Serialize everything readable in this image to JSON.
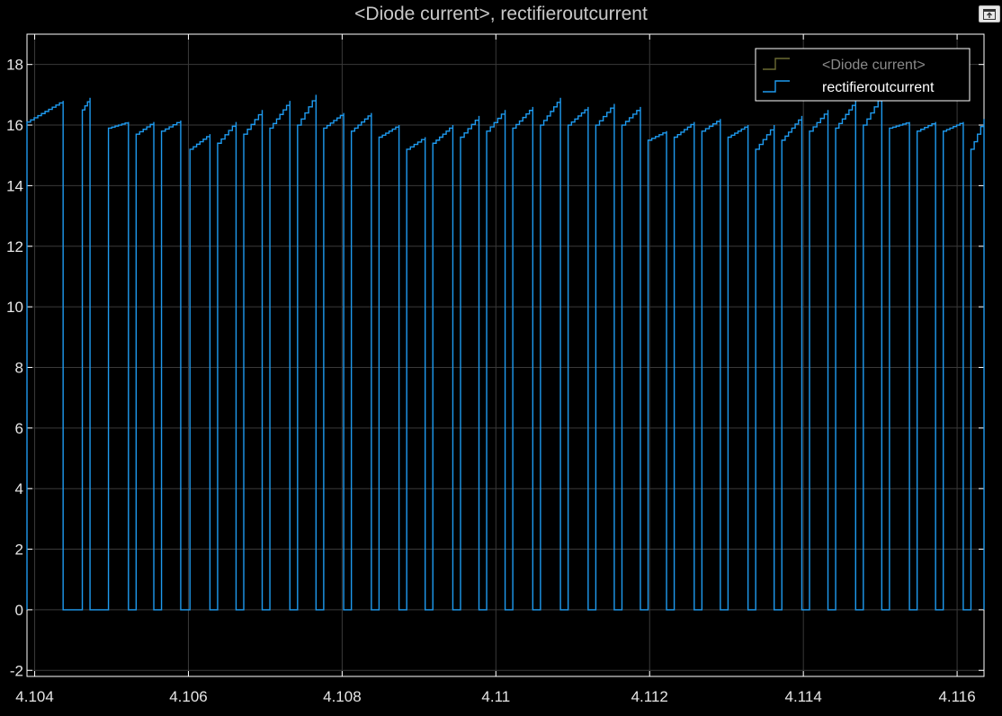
{
  "title": "<Diode current>, rectifieroutcurrent",
  "colors": {
    "background": "#000000",
    "axes_border": "#ffffff",
    "grid": "#3a3a3a",
    "tick_label": "#e6e6e6",
    "title": "#c8c8c8",
    "legend_bg": "#000000",
    "legend_border": "#ffffff"
  },
  "toolbar": {
    "undock_icon": "undock-icon"
  },
  "chart_data": {
    "type": "line",
    "step": true,
    "title": "<Diode current>, rectifieroutcurrent",
    "xlabel": "",
    "ylabel": "",
    "xlim": [
      4.1039,
      4.11635
    ],
    "ylim": [
      -2.2,
      19.0
    ],
    "xticks": [
      4.104,
      4.106,
      4.108,
      4.11,
      4.112,
      4.114,
      4.116
    ],
    "xtick_labels": [
      "4.104",
      "4.106",
      "4.108",
      "4.11",
      "4.112",
      "4.114",
      "4.116"
    ],
    "yticks": [
      -2,
      0,
      2,
      4,
      6,
      8,
      10,
      12,
      14,
      16,
      18
    ],
    "ytick_labels": [
      "-2",
      "0",
      "2",
      "4",
      "6",
      "8",
      "10",
      "12",
      "14",
      "16",
      "18"
    ],
    "grid": true,
    "legend_position": "top-right",
    "legend": [
      {
        "label": "<Diode current>",
        "color": "#6b6a33",
        "text_color": "#8a8a8a",
        "visible_trace": false
      },
      {
        "label": "rectifieroutcurrent",
        "color": "#1e9bf0",
        "text_color": "#ffffff",
        "visible_trace": true
      }
    ],
    "series": [
      {
        "name": "rectifieroutcurrent",
        "color": "#1e9bf0",
        "pulses": [
          {
            "start": 4.1039,
            "end": 4.10437,
            "peak": 16.8,
            "shape": "rise",
            "base": 16.1
          },
          {
            "start": 4.10462,
            "end": 4.10465,
            "peak": 16.9,
            "shape": "flat",
            "base": 16.5
          },
          {
            "start": 4.10465,
            "end": 4.10466,
            "peak": 16.9,
            "shape": "flat",
            "base": 16.5
          },
          {
            "start": 4.10466,
            "end": 4.10467,
            "peak": 16.9,
            "shape": "flat",
            "base": 16.5
          },
          {
            "start": 4.10467,
            "end": 4.10472,
            "peak": 16.9,
            "shape": "rise",
            "base": 16.5
          },
          {
            "start": 4.10496,
            "end": 4.10522,
            "peak": 16.1,
            "shape": "rise",
            "base": 15.9
          },
          {
            "start": 4.10532,
            "end": 4.10555,
            "peak": 16.1,
            "shape": "rise",
            "base": 15.7
          },
          {
            "start": 4.10565,
            "end": 4.1059,
            "peak": 16.15,
            "shape": "rise",
            "base": 15.8
          },
          {
            "start": 4.10602,
            "end": 4.10628,
            "peak": 15.7,
            "shape": "rise",
            "base": 15.2
          },
          {
            "start": 4.10638,
            "end": 4.10662,
            "peak": 16.1,
            "shape": "rise",
            "base": 15.4
          },
          {
            "start": 4.10672,
            "end": 4.10696,
            "peak": 16.5,
            "shape": "rise",
            "base": 15.7
          },
          {
            "start": 4.10706,
            "end": 4.10732,
            "peak": 16.8,
            "shape": "rise",
            "base": 15.9
          },
          {
            "start": 4.10742,
            "end": 4.10766,
            "peak": 17.0,
            "shape": "rise",
            "base": 16.0
          },
          {
            "start": 4.10776,
            "end": 4.10802,
            "peak": 16.4,
            "shape": "rise",
            "base": 15.9
          },
          {
            "start": 4.10812,
            "end": 4.10838,
            "peak": 16.4,
            "shape": "rise",
            "base": 15.8
          },
          {
            "start": 4.10848,
            "end": 4.10874,
            "peak": 16.0,
            "shape": "rise",
            "base": 15.6
          },
          {
            "start": 4.10884,
            "end": 4.10908,
            "peak": 15.6,
            "shape": "rise",
            "base": 15.2
          },
          {
            "start": 4.10918,
            "end": 4.10944,
            "peak": 16.0,
            "shape": "rise",
            "base": 15.4
          },
          {
            "start": 4.10954,
            "end": 4.10978,
            "peak": 16.3,
            "shape": "rise",
            "base": 15.6
          },
          {
            "start": 4.10988,
            "end": 4.11012,
            "peak": 16.5,
            "shape": "rise",
            "base": 15.8
          },
          {
            "start": 4.11022,
            "end": 4.11048,
            "peak": 16.6,
            "shape": "rise",
            "base": 15.9
          },
          {
            "start": 4.11058,
            "end": 4.11084,
            "peak": 16.9,
            "shape": "rise",
            "base": 16.0
          },
          {
            "start": 4.11094,
            "end": 4.1112,
            "peak": 16.6,
            "shape": "rise",
            "base": 16.0
          },
          {
            "start": 4.1113,
            "end": 4.11154,
            "peak": 16.7,
            "shape": "rise",
            "base": 16.0
          },
          {
            "start": 4.11164,
            "end": 4.11188,
            "peak": 16.6,
            "shape": "rise",
            "base": 16.0
          },
          {
            "start": 4.11198,
            "end": 4.11222,
            "peak": 15.8,
            "shape": "rise",
            "base": 15.5
          },
          {
            "start": 4.11232,
            "end": 4.11258,
            "peak": 16.1,
            "shape": "rise",
            "base": 15.6
          },
          {
            "start": 4.11268,
            "end": 4.11292,
            "peak": 16.2,
            "shape": "rise",
            "base": 15.8
          },
          {
            "start": 4.11302,
            "end": 4.11328,
            "peak": 16.0,
            "shape": "rise",
            "base": 15.6
          },
          {
            "start": 4.11338,
            "end": 4.11362,
            "peak": 16.0,
            "shape": "rise",
            "base": 15.2
          },
          {
            "start": 4.11372,
            "end": 4.11398,
            "peak": 16.3,
            "shape": "rise",
            "base": 15.5
          },
          {
            "start": 4.11408,
            "end": 4.11432,
            "peak": 16.5,
            "shape": "rise",
            "base": 15.8
          },
          {
            "start": 4.11442,
            "end": 4.11468,
            "peak": 16.8,
            "shape": "rise",
            "base": 15.9
          },
          {
            "start": 4.11478,
            "end": 4.11502,
            "peak": 17.0,
            "shape": "rise",
            "base": 16.0
          },
          {
            "start": 4.11512,
            "end": 4.11538,
            "peak": 16.1,
            "shape": "rise",
            "base": 15.9
          },
          {
            "start": 4.11548,
            "end": 4.11572,
            "peak": 16.1,
            "shape": "rise",
            "base": 15.8
          },
          {
            "start": 4.11582,
            "end": 4.11608,
            "peak": 16.1,
            "shape": "rise",
            "base": 15.8
          },
          {
            "start": 4.11618,
            "end": 4.11635,
            "peak": 16.2,
            "shape": "rise",
            "base": 15.2
          }
        ]
      }
    ]
  }
}
